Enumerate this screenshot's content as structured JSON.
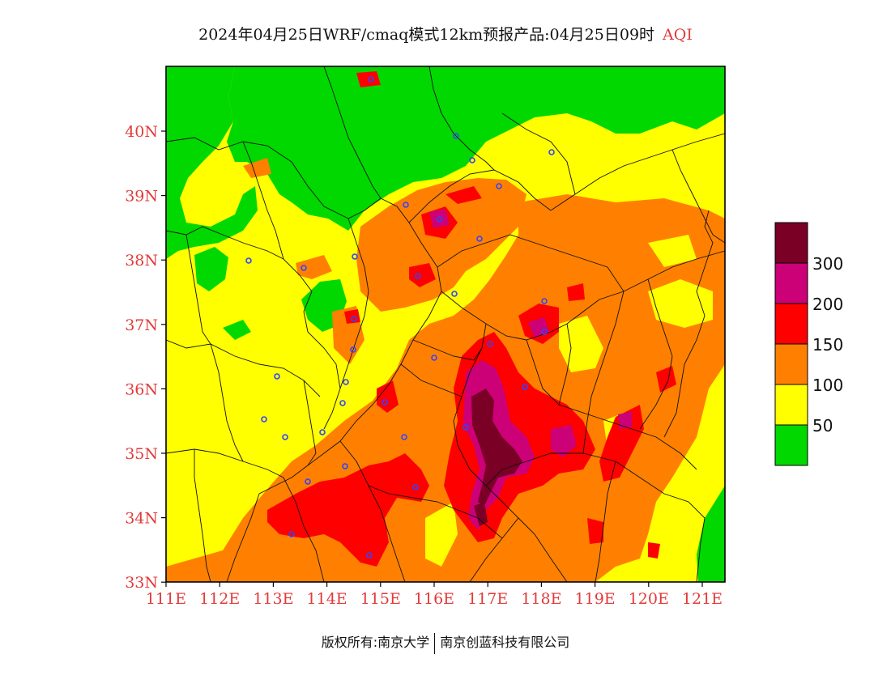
{
  "title": {
    "main": "2024年04月25日WRF/cmaq模式12km预报产品:04月25日09时",
    "variable": "AQI"
  },
  "map": {
    "lat_labels": [
      "40N",
      "39N",
      "38N",
      "37N",
      "36N",
      "35N",
      "34N",
      "33N"
    ],
    "lon_labels": [
      "111E",
      "112E",
      "113E",
      "114E",
      "115E",
      "116E",
      "117E",
      "118E",
      "119E",
      "120E",
      "121E"
    ]
  },
  "legend": {
    "levels": [
      {
        "label": "",
        "color": "#00d800"
      },
      {
        "label": "50",
        "color": "#ffff00"
      },
      {
        "label": "100",
        "color": "#ff8000"
      },
      {
        "label": "150",
        "color": "#ff0000"
      },
      {
        "label": "200",
        "color": "#cc0077"
      },
      {
        "label": "300",
        "color": "#7a0025"
      }
    ]
  },
  "footer": {
    "owner": "版权所有:南京大学",
    "company": "南京创蓝科技有限公司"
  },
  "colors": {
    "green": "#00d800",
    "yellow": "#ffff00",
    "orange": "#ff8000",
    "red": "#ff0000",
    "magenta": "#cc0077",
    "maroon": "#7a0025",
    "tick": "#e23a3a"
  }
}
